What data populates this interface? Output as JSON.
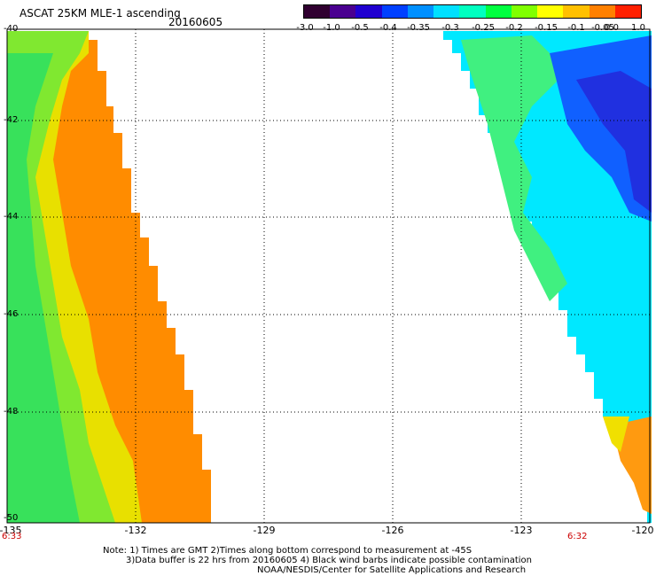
{
  "header": {
    "title": "ASCAT 25KM MLE-1 ascending",
    "date": "20160605"
  },
  "colorbar": {
    "labels": [
      "-3.0",
      "-1.0",
      "-0.5",
      "-0.4",
      "-0.35",
      "-0.3",
      "-0.25",
      "-0.2",
      "-0.15",
      "-0.1",
      "-0.05",
      "0.0",
      "1.0"
    ],
    "colors": [
      "#300030",
      "#4a0090",
      "#2000d0",
      "#0040ff",
      "#0090ff",
      "#00e0ff",
      "#00ffc0",
      "#00ff40",
      "#80ff00",
      "#ffff00",
      "#ffc000",
      "#ff8000",
      "#ff2000"
    ]
  },
  "axes": {
    "y_labels": [
      "-40",
      "-42",
      "-44",
      "-46",
      "-48",
      "-50"
    ],
    "x_labels": [
      "-135",
      "-132",
      "-129",
      "-126",
      "-123",
      "-120"
    ],
    "time_labels": [
      "6:33",
      "6:32"
    ]
  },
  "notes": [
    "Note: 1) Times are GMT 2)Times along bottom correspond to measurement at -45S",
    "3)Data buffer is 22 hrs from 20160605 4) Black wind barbs indicate possible contamination",
    "NOAA/NESDIS/Center for Satellite Applications and Research"
  ]
}
